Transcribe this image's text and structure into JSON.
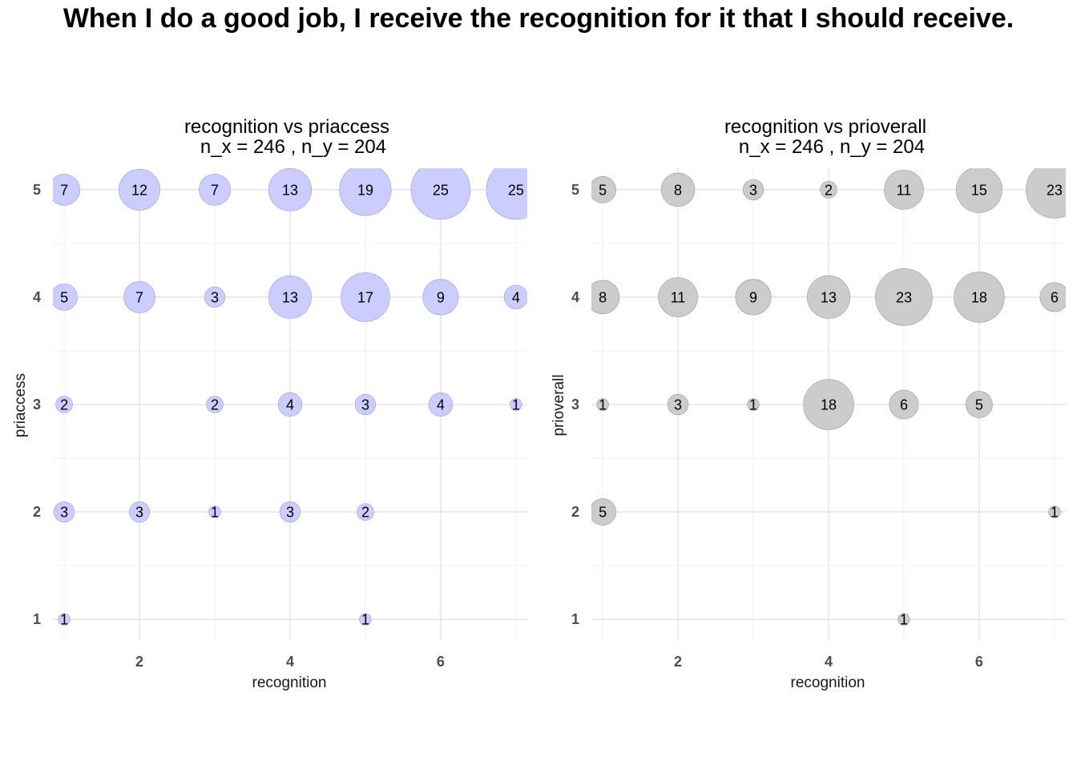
{
  "title": "When I do a good job, I receive the recognition for it that I should receive.",
  "chart_data": [
    {
      "type": "scatter",
      "title_line1": "recognition vs priaccess",
      "title_line2": "n_x = 246 , n_y = 204",
      "xlabel": "recognition",
      "ylabel": "priaccess",
      "xlim": [
        0.85,
        7.15
      ],
      "ylim": [
        0.8,
        5.2
      ],
      "x_ticks": [
        2,
        4,
        6
      ],
      "y_ticks": [
        1,
        2,
        3,
        4,
        5
      ],
      "grid": true,
      "fill_color": "#ccccff",
      "stroke_color": "#9999ee",
      "points": [
        {
          "x": 1,
          "y": 5,
          "n": 7
        },
        {
          "x": 2,
          "y": 5,
          "n": 12
        },
        {
          "x": 3,
          "y": 5,
          "n": 7
        },
        {
          "x": 4,
          "y": 5,
          "n": 13
        },
        {
          "x": 5,
          "y": 5,
          "n": 19
        },
        {
          "x": 6,
          "y": 5,
          "n": 25
        },
        {
          "x": 7,
          "y": 5,
          "n": 25
        },
        {
          "x": 1,
          "y": 4,
          "n": 5
        },
        {
          "x": 2,
          "y": 4,
          "n": 7
        },
        {
          "x": 3,
          "y": 4,
          "n": 3
        },
        {
          "x": 4,
          "y": 4,
          "n": 13
        },
        {
          "x": 5,
          "y": 4,
          "n": 17
        },
        {
          "x": 6,
          "y": 4,
          "n": 9
        },
        {
          "x": 7,
          "y": 4,
          "n": 4
        },
        {
          "x": 1,
          "y": 3,
          "n": 2
        },
        {
          "x": 3,
          "y": 3,
          "n": 2
        },
        {
          "x": 4,
          "y": 3,
          "n": 4
        },
        {
          "x": 5,
          "y": 3,
          "n": 3
        },
        {
          "x": 6,
          "y": 3,
          "n": 4
        },
        {
          "x": 7,
          "y": 3,
          "n": 1
        },
        {
          "x": 1,
          "y": 2,
          "n": 3
        },
        {
          "x": 2,
          "y": 2,
          "n": 3
        },
        {
          "x": 3,
          "y": 2,
          "n": 1
        },
        {
          "x": 4,
          "y": 2,
          "n": 3
        },
        {
          "x": 5,
          "y": 2,
          "n": 2
        },
        {
          "x": 1,
          "y": 1,
          "n": 1
        },
        {
          "x": 5,
          "y": 1,
          "n": 1
        }
      ]
    },
    {
      "type": "scatter",
      "title_line1": "recognition vs prioverall",
      "title_line2": "n_x = 246 , n_y = 204",
      "xlabel": "recognition",
      "ylabel": "prioverall",
      "xlim": [
        0.85,
        7.15
      ],
      "ylim": [
        0.8,
        5.2
      ],
      "x_ticks": [
        2,
        4,
        6
      ],
      "y_ticks": [
        1,
        2,
        3,
        4,
        5
      ],
      "grid": true,
      "fill_color": "#cccccc",
      "stroke_color": "#999999",
      "points": [
        {
          "x": 1,
          "y": 5,
          "n": 5
        },
        {
          "x": 2,
          "y": 5,
          "n": 8
        },
        {
          "x": 3,
          "y": 5,
          "n": 3
        },
        {
          "x": 4,
          "y": 5,
          "n": 2
        },
        {
          "x": 5,
          "y": 5,
          "n": 11
        },
        {
          "x": 6,
          "y": 5,
          "n": 15
        },
        {
          "x": 7,
          "y": 5,
          "n": 23
        },
        {
          "x": 1,
          "y": 4,
          "n": 8
        },
        {
          "x": 2,
          "y": 4,
          "n": 11
        },
        {
          "x": 3,
          "y": 4,
          "n": 9
        },
        {
          "x": 4,
          "y": 4,
          "n": 13
        },
        {
          "x": 5,
          "y": 4,
          "n": 23
        },
        {
          "x": 6,
          "y": 4,
          "n": 18
        },
        {
          "x": 7,
          "y": 4,
          "n": 6
        },
        {
          "x": 1,
          "y": 3,
          "n": 1
        },
        {
          "x": 2,
          "y": 3,
          "n": 3
        },
        {
          "x": 3,
          "y": 3,
          "n": 1
        },
        {
          "x": 4,
          "y": 3,
          "n": 18
        },
        {
          "x": 5,
          "y": 3,
          "n": 6
        },
        {
          "x": 6,
          "y": 3,
          "n": 5
        },
        {
          "x": 1,
          "y": 2,
          "n": 5
        },
        {
          "x": 7,
          "y": 2,
          "n": 1
        },
        {
          "x": 5,
          "y": 1,
          "n": 1
        }
      ]
    }
  ]
}
